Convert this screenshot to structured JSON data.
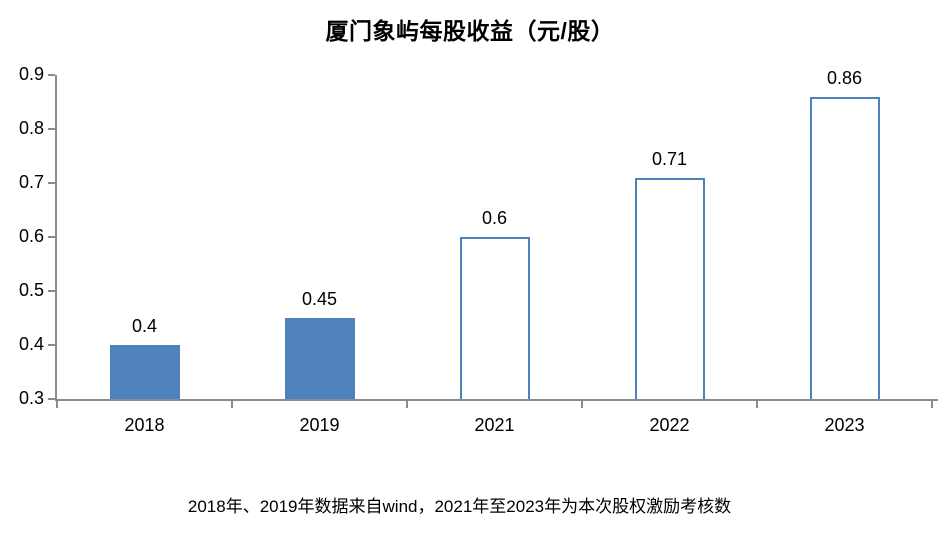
{
  "footnote": "2018年、2019年数据来自wind，2021年至2023年为本次股权激励考核数",
  "colors": {
    "bar_fill": "#4f81bd",
    "bar_border": "#4f81bd",
    "hollow_fill": "#ffffff",
    "axis": "#8b8b8b",
    "text": "#000000"
  },
  "chart_data": {
    "type": "bar",
    "title": "厦门象屿每股收益（元/股）",
    "categories": [
      "2018",
      "2019",
      "2021",
      "2022",
      "2023"
    ],
    "values": [
      0.4,
      0.45,
      0.6,
      0.71,
      0.86
    ],
    "data_labels": [
      "0.4",
      "0.45",
      "0.6",
      "0.71",
      "0.86"
    ],
    "bar_fill_style": [
      "solid",
      "solid",
      "hollow",
      "hollow",
      "hollow"
    ],
    "xlabel": "",
    "ylabel": "",
    "ylim": [
      0.3,
      0.9
    ],
    "yticks": [
      "0.9",
      "0.8",
      "0.7",
      "0.6",
      "0.5",
      "0.4",
      "0.3"
    ],
    "grid": "off",
    "legend": "none"
  }
}
